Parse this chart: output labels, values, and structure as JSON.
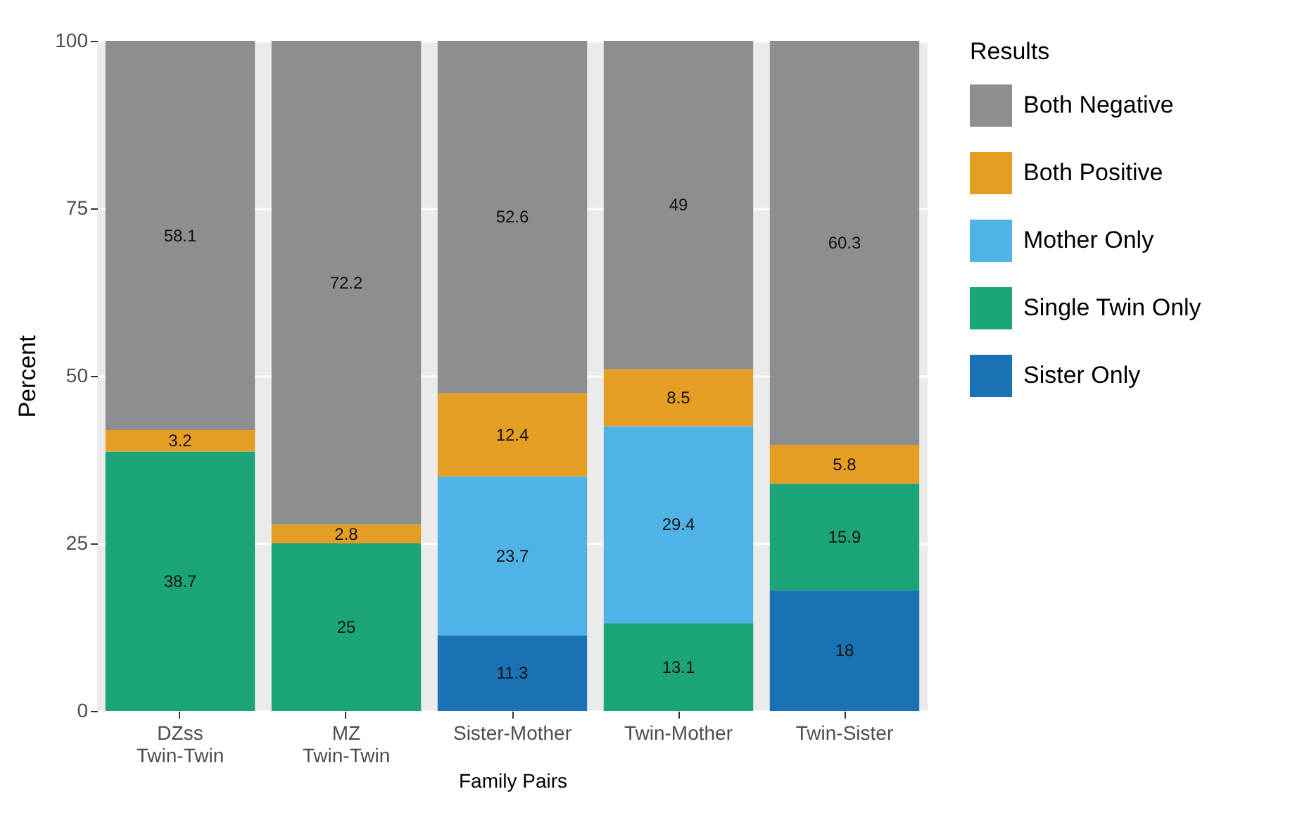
{
  "chart_data": {
    "type": "bar",
    "stacked": true,
    "xlabel": "Family Pairs",
    "ylabel": "Percent",
    "legend_title": "Results",
    "legend": "right",
    "grid": "y",
    "data_labels": true,
    "categories": [
      "DZss\nTwin-Twin",
      "MZ\nTwin-Twin",
      "Sister-Mother",
      "Twin-Mother",
      "Twin-Sister"
    ],
    "ylim": [
      0,
      100
    ],
    "yticks": [
      0,
      25,
      50,
      75,
      100
    ],
    "series": [
      {
        "name": "Sister Only",
        "color": "#1a72b5",
        "values": [
          null,
          null,
          11.3,
          null,
          18
        ]
      },
      {
        "name": "Single Twin Only",
        "color": "#1ba37a",
        "values": [
          38.7,
          25,
          null,
          13.1,
          15.9
        ]
      },
      {
        "name": "Mother Only",
        "color": "#4fb3e6",
        "values": [
          null,
          null,
          23.7,
          29.4,
          null
        ]
      },
      {
        "name": "Both Positive",
        "color": "#e59e24",
        "values": [
          3.2,
          2.8,
          12.4,
          8.5,
          5.8
        ]
      },
      {
        "name": "Both Negative",
        "color": "#8d8e90",
        "values": [
          58.1,
          72.2,
          52.6,
          49,
          60.3
        ]
      }
    ]
  }
}
